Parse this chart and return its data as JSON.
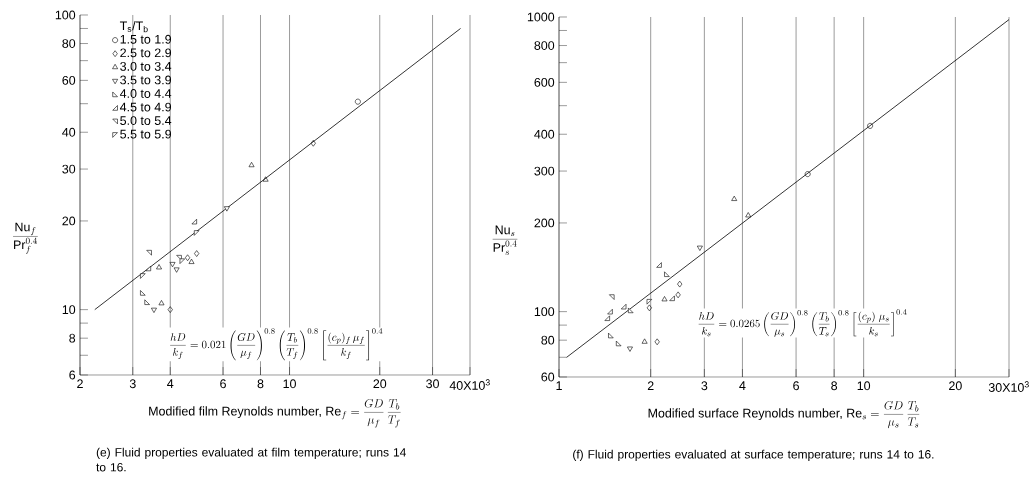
{
  "chart_data": [
    {
      "type": "scatter",
      "xlabel": "\\mbox{Modified film Reynolds number, } \\mathrm{Re}_f = \\frac{GD}{\\mu_f}\\,\\frac{T_b}{T_f}",
      "ylabel": "\\frac{\\mathrm{Nu}_f}{\\mathrm{Pr}_f^{0.4}}",
      "legend_title": "T$_{s}$/T$_{b}$",
      "legend": "top left",
      "log": "xy",
      "grid": "x",
      "xlim": [
        2,
        40
      ],
      "ylim": [
        6,
        100
      ],
      "xticks": [
        2,
        3,
        4,
        6,
        8,
        10,
        20,
        30,
        {
          "value": 40,
          "label": "40X10$^{3}$"
        }
      ],
      "yticks": [
        6,
        {
          "value": 7,
          "label": null
        },
        8,
        {
          "value": 9,
          "label": null
        },
        10,
        20,
        30,
        40,
        {
          "value": 50,
          "label": null
        },
        60,
        {
          "value": 70,
          "label": null
        },
        80,
        {
          "value": 90,
          "label": null
        },
        100
      ],
      "series": [
        {
          "name": "1.5 to 1.9",
          "marker": "circle",
          "color": "#000000",
          "x": [
            16.9
          ],
          "values": [
            50.8
          ]
        },
        {
          "name": "2.5 to 2.9",
          "marker": "diamond",
          "color": "#000000",
          "x": [
            12.0,
            4.57,
            4.9,
            4.0
          ],
          "values": [
            36.7,
            15.0,
            15.5,
            10.0
          ]
        },
        {
          "name": "3.0 to 3.4",
          "marker": "triangle",
          "color": "#000000",
          "x": [
            7.47,
            8.32,
            3.67,
            4.71,
            3.74
          ],
          "values": [
            30.9,
            27.6,
            13.9,
            14.5,
            10.5
          ]
        },
        {
          "name": "3.5 to 3.9",
          "marker": "triangle",
          "color": "#000000",
          "x": [
            6.18,
            4.07,
            4.2,
            3.53
          ],
          "values": [
            22.1,
            14.3,
            13.7,
            10.0
          ]
        },
        {
          "name": "4.0 to 4.4",
          "marker": "triangle",
          "color": "#000000",
          "x": [
            3.24,
            3.35
          ],
          "values": [
            11.4,
            10.6
          ]
        },
        {
          "name": "4.5 to 4.9",
          "marker": "triangle",
          "color": "#000000",
          "x": [
            4.81,
            3.38
          ],
          "values": [
            19.9,
            13.8
          ]
        },
        {
          "name": "5.0 to 5.4",
          "marker": "triangle",
          "color": "#000000",
          "x": [
            3.4,
            4.28
          ],
          "values": [
            15.6,
            15.0
          ]
        },
        {
          "name": "5.5 to 5.9",
          "marker": "triangle",
          "color": "#000000",
          "x": [
            4.9,
            3.24,
            4.39
          ],
          "values": [
            18.2,
            13.0,
            14.6
          ]
        },
        {
          "type": "line",
          "marker": "none",
          "line_style": "solid",
          "color": "#000000",
          "x": [
            2.24,
            37.2
          ],
          "values": [
            10,
            90
          ]
        }
      ],
      "annotations": [
        "\\frac{hD}{k_f} = 0.021\\left(\\frac{GD}{\\mu_f}\\right)^{0.8}\\left(\\frac{T_b}{T_f}\\right)^{0.8}\\left[\\frac{(c_p)_f\\,\\mu_f}{k_f}\\right]^{0.4}",
        "(e) Fluid properties evaluated at film temperature; runs 14 to 16."
      ]
    },
    {
      "type": "scatter",
      "xlabel": "\\mbox{Modified surface Reynolds number, } \\mathrm{Re}_s = \\frac{GD}{\\mu_s}\\,\\frac{T_b}{T_s}",
      "ylabel": "\\frac{\\mathrm{Nu}_s}{\\mathrm{Pr}_s^{0.4}}",
      "log": "xy",
      "grid": "x",
      "xlim": [
        1,
        30
      ],
      "ylim": [
        60,
        1000
      ],
      "xticks": [
        1,
        2,
        3,
        4,
        6,
        8,
        10,
        20,
        {
          "value": 30,
          "label": "30X10$^{3}$"
        }
      ],
      "yticks": [
        60,
        {
          "value": 70,
          "label": null
        },
        80,
        {
          "value": 90,
          "label": null
        },
        100,
        200,
        300,
        400,
        {
          "value": 500,
          "label": null
        },
        600,
        {
          "value": 700,
          "label": null
        },
        800,
        {
          "value": 900,
          "label": null
        },
        1000
      ],
      "series": [
        {
          "marker": "circle",
          "color": "#000000",
          "x": [
            6.55,
            10.5
          ],
          "values": [
            293,
            427
          ]
        },
        {
          "marker": "diamond",
          "color": "#000000",
          "x": [
            2.49,
            2.46,
            2.1,
            1.98
          ],
          "values": [
            124,
            114,
            79,
            103
          ]
        },
        {
          "marker": "triangle",
          "color": "#000000",
          "x": [
            3.76,
            4.18,
            2.22,
            1.91
          ],
          "values": [
            241,
            212,
            110,
            79
          ]
        },
        {
          "marker": "triangle",
          "color": "#000000",
          "x": [
            2.9,
            1.71
          ],
          "values": [
            165,
            75
          ]
        },
        {
          "marker": "triangle",
          "color": "#000000",
          "x": [
            2.26,
            1.72,
            1.48,
            1.57
          ],
          "values": [
            134,
            101,
            83,
            78
          ]
        },
        {
          "marker": "triangle",
          "color": "#000000",
          "x": [
            2.13,
            2.35,
            1.63,
            1.47,
            1.44
          ],
          "values": [
            144,
            111,
            104,
            100,
            95
          ]
        },
        {
          "marker": "triangle",
          "color": "#000000",
          "x": [
            1.49
          ],
          "values": [
            112
          ]
        },
        {
          "marker": "triangle",
          "color": "#000000",
          "x": [
            1.98
          ],
          "values": [
            108
          ]
        },
        {
          "type": "line",
          "marker": "none",
          "line_style": "solid",
          "color": "#000000",
          "x": [
            1.06,
            30
          ],
          "values": [
            70,
            980
          ]
        }
      ],
      "annotations": [
        "\\frac{hD}{k_s} = 0.0265\\left(\\frac{GD}{\\mu_s}\\right)^{0.8}\\left(\\frac{T_b}{T_s}\\right)^{0.8}\\left[\\frac{(c_p)\\ \\mu_s}{k_s}\\right]^{0.4}",
        "(f) Fluid properties evaluated at surface temperature; runs 14 to 16."
      ]
    }
  ]
}
